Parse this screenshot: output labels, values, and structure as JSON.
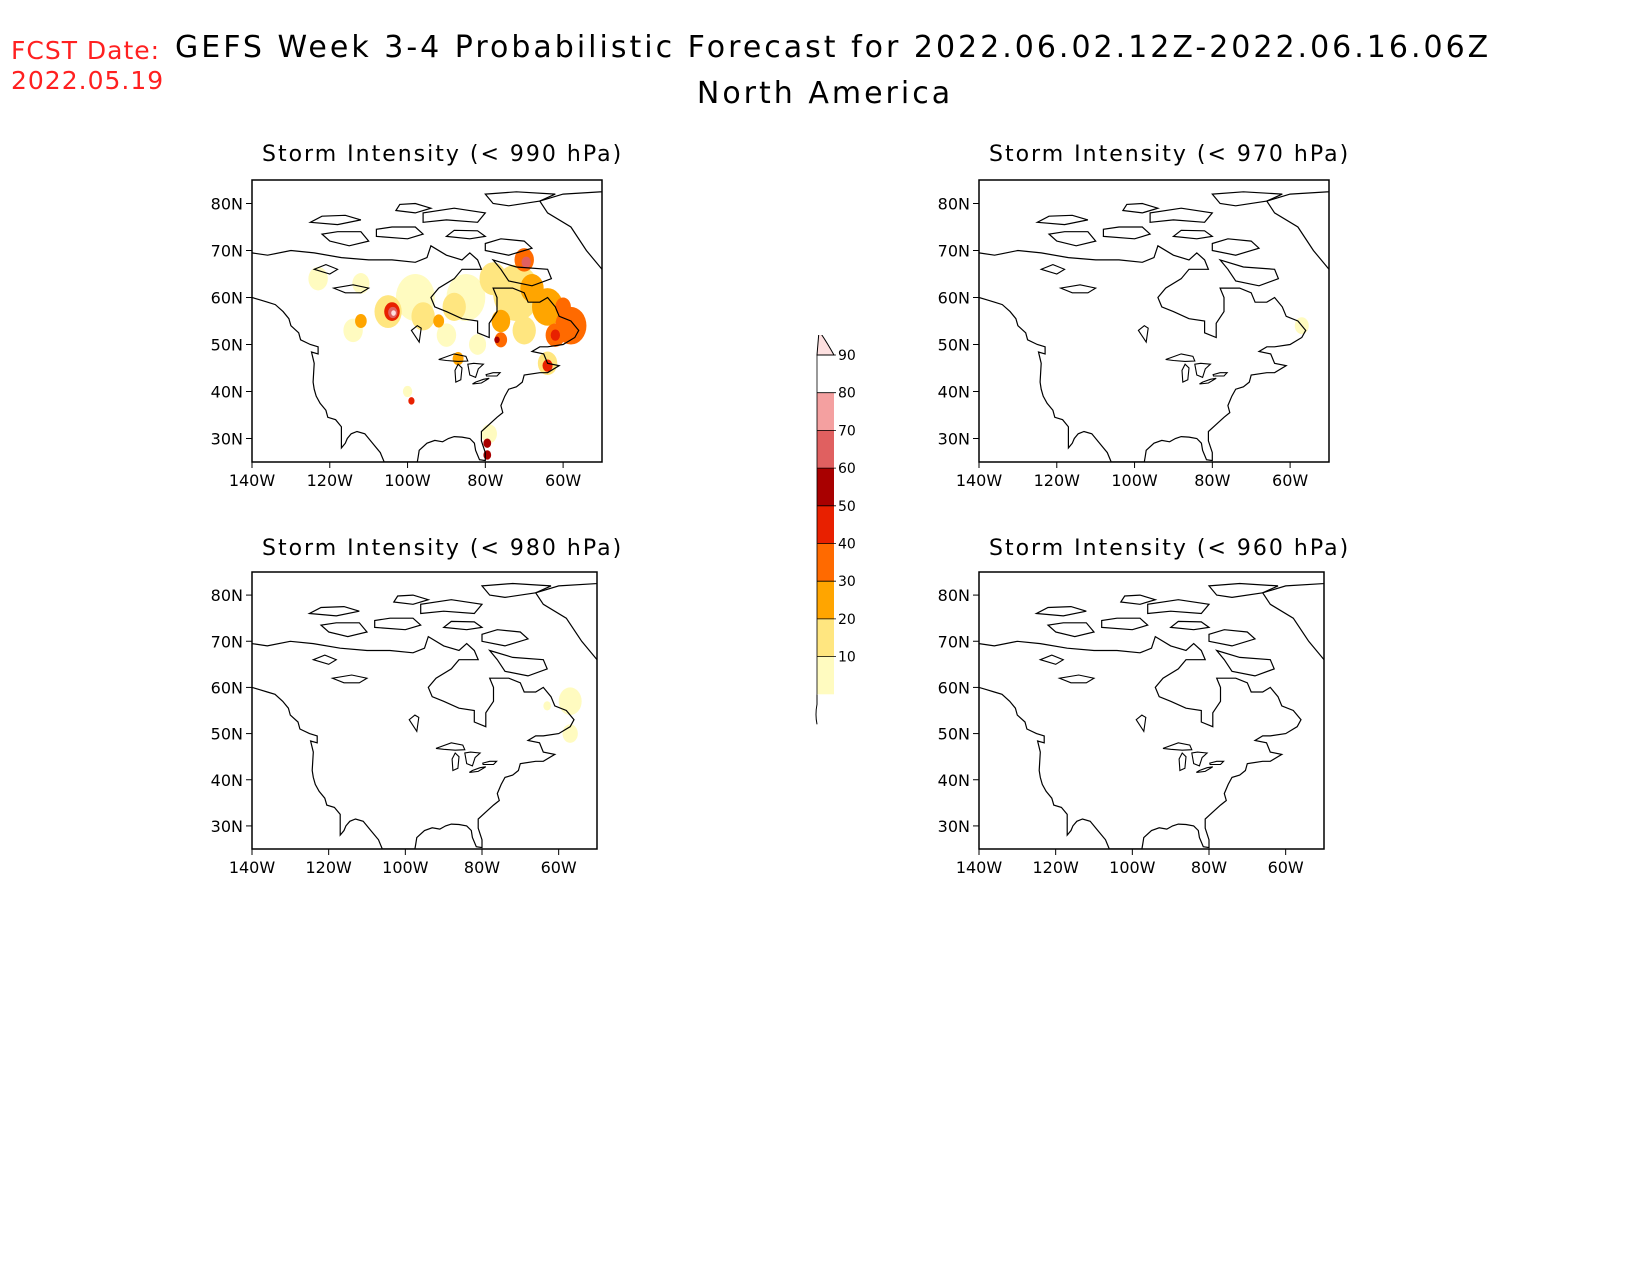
{
  "header": {
    "fcst_label": "FCST Date:",
    "fcst_date": "2022.05.19",
    "title": "GEFS Week 3-4 Probabilistic Forecast for 2022.06.02.12Z-2022.06.16.06Z",
    "subtitle": "North America"
  },
  "axes": {
    "lon_labels": [
      "140W",
      "120W",
      "100W",
      "80W",
      "60W"
    ],
    "lat_labels": [
      "80N",
      "70N",
      "60N",
      "50N",
      "40N",
      "30N"
    ]
  },
  "panels": [
    {
      "id": "p990",
      "title": "Storm Intensity (< 990 hPa)"
    },
    {
      "id": "p970",
      "title": "Storm Intensity (< 970 hPa)"
    },
    {
      "id": "p980",
      "title": "Storm Intensity (< 980 hPa)"
    },
    {
      "id": "p960",
      "title": "Storm Intensity (< 960 hPa)"
    }
  ],
  "colorbar": {
    "levels": [
      "10",
      "20",
      "30",
      "40",
      "50",
      "60",
      "70",
      "80",
      "90"
    ],
    "colors": [
      "#fffbc0",
      "#ffe680",
      "#ffa500",
      "#ff6a00",
      "#e82000",
      "#a80000",
      "#e06060",
      "#f4a0a0",
      "#fde0e0"
    ]
  }
}
